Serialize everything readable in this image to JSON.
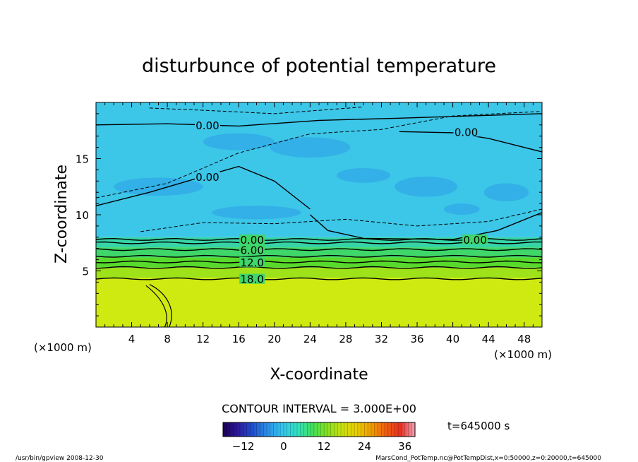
{
  "chart_data": {
    "type": "heatmap",
    "title": "disturbunce of potential temperature",
    "xlabel": "X-coordinate",
    "ylabel": "Z-coordinate",
    "x_unit_left": "(×1000 m)",
    "x_unit_right": "(×1000 m)",
    "xlim": [
      0,
      50
    ],
    "ylim": [
      0,
      20
    ],
    "x_ticks": [
      4,
      8,
      12,
      16,
      20,
      24,
      28,
      32,
      36,
      40,
      44,
      48
    ],
    "y_ticks": [
      5,
      10,
      15
    ],
    "contour_interval_label": "CONTOUR INTERVAL = 3.000E+00",
    "time_label": "t=645000 s",
    "colorbar": {
      "range": [
        -18,
        39
      ],
      "tick_values": [
        -12,
        0,
        12,
        24,
        36
      ],
      "stops": [
        "#1a0050",
        "#2e1a9a",
        "#1f4fd0",
        "#2b8fe6",
        "#33c4ee",
        "#2fe0c4",
        "#40e060",
        "#80e020",
        "#c8e010",
        "#e8d000",
        "#f0a000",
        "#f06010",
        "#e83020",
        "#f0a0b8"
      ]
    },
    "bands": [
      {
        "z_bottom": 0,
        "z_top": 4.4,
        "value": 24,
        "color": "#cfea10"
      },
      {
        "z_bottom": 4.4,
        "z_top": 5.3,
        "value": 19.5,
        "color": "#9ee21a"
      },
      {
        "z_bottom": 5.3,
        "z_top": 6.2,
        "value": 13.5,
        "color": "#58da2c"
      },
      {
        "z_bottom": 6.2,
        "z_top": 7.1,
        "value": 7.5,
        "color": "#3fd66a"
      },
      {
        "z_bottom": 7.1,
        "z_top": 8.0,
        "value": 2,
        "color": "#36d4a6"
      },
      {
        "z_bottom": 8.0,
        "z_top": 20,
        "value": -3,
        "color": "#3cc6e8"
      }
    ],
    "contours": [
      {
        "label": "0.00",
        "z": 7.8,
        "label_x": 17.5
      },
      {
        "label": "6.00",
        "z": 6.9,
        "label_x": 17.5
      },
      {
        "label": "12.0",
        "z": 5.8,
        "label_x": 17.5
      },
      {
        "label": "18.0",
        "z": 4.3,
        "label_x": 17.5
      },
      {
        "label": "0.00",
        "z": 18.0,
        "label_x": 12.5
      },
      {
        "label": "0.00",
        "z": 17.4,
        "label_x": 41.5
      },
      {
        "label": "0.00",
        "z": 13.4,
        "label_x": 12.5
      },
      {
        "label": "0.00",
        "z": 7.8,
        "label_x": 42.5
      }
    ]
  },
  "footer": {
    "left": "/usr/bin/gpview   2008-12-30",
    "right": "MarsCond_PotTemp.nc@PotTempDist,x=0:50000,z=0:20000,t=645000"
  }
}
